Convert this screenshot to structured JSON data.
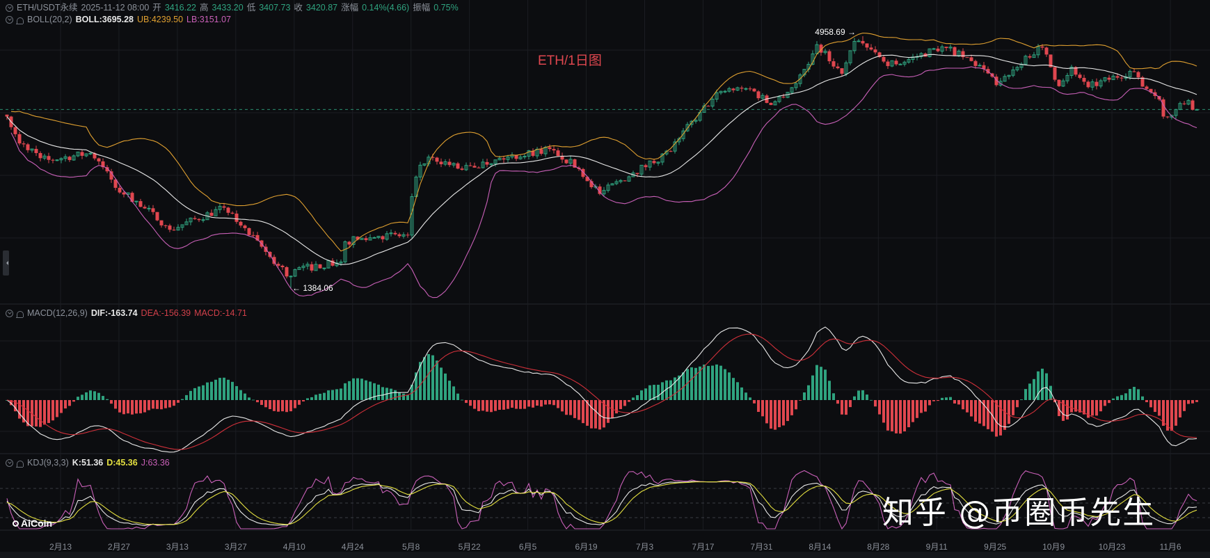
{
  "header": {
    "symbol": "ETH/USDT永续",
    "datetime": "2025-11-12 08:00",
    "open_label": "开",
    "open": "3416.22",
    "high_label": "高",
    "high": "3433.20",
    "low_label": "低",
    "low": "3407.73",
    "close_label": "收",
    "close": "3420.87",
    "change_label": "涨幅",
    "change": "0.14%(4.66)",
    "amplitude_label": "振幅",
    "amplitude": "0.75%"
  },
  "boll": {
    "label": "BOLL(20,2)",
    "mid": "BOLL:3695.28",
    "ub": "UB:4239.50",
    "lb": "LB:3151.07"
  },
  "macd": {
    "label": "MACD(12,26,9)",
    "dif": "DIF:-163.74",
    "dea": "DEA:-156.39",
    "macd": "MACD:-14.71"
  },
  "kdj": {
    "label": "KDJ(9,3,3)",
    "k": "K:51.36",
    "d": "D:45.36",
    "j": "J:63.36"
  },
  "chart_title": "ETH/1日图",
  "watermark": "知乎 @币圈币先生",
  "logo": "AiCoin",
  "annotations": {
    "high": "4958.69",
    "low": "1384.06"
  },
  "colors": {
    "up": "#2fa37f",
    "down": "#e0474f",
    "boll_mid": "#e8e8e8",
    "boll_ub": "#e0a030",
    "boll_lb": "#c960b8",
    "dif": "#e8e8e8",
    "dea": "#d0303a",
    "k": "#e8e8e8",
    "d": "#e4e040",
    "j": "#c960b8",
    "background": "#0c0d10"
  },
  "chart_data": {
    "type": "candlestick",
    "y_scale": "log",
    "year": 2025,
    "x_tick_labels": [
      "2月13",
      "2月27",
      "3月13",
      "3月27",
      "4月10",
      "4月24",
      "5月8",
      "5月22",
      "6月5",
      "6月19",
      "7月3",
      "7月17",
      "7月31",
      "8月14",
      "8月28",
      "9月11",
      "9月25",
      "10月9",
      "10月23",
      "11月6"
    ],
    "approx_close_path": [
      [
        "01-31",
        3300
      ],
      [
        "02-03",
        2880
      ],
      [
        "02-10",
        2650
      ],
      [
        "02-20",
        2740
      ],
      [
        "02-24",
        2500
      ],
      [
        "02-26",
        2300
      ],
      [
        "03-03",
        2150
      ],
      [
        "03-10",
        1900
      ],
      [
        "03-11",
        1860
      ],
      [
        "03-24",
        2080
      ],
      [
        "03-28",
        1900
      ],
      [
        "04-06",
        1550
      ],
      [
        "04-09",
        1470
      ],
      [
        "04-10",
        1520
      ],
      [
        "04-21",
        1580
      ],
      [
        "04-22",
        1750
      ],
      [
        "04-30",
        1800
      ],
      [
        "05-07",
        1810
      ],
      [
        "05-08",
        2200
      ],
      [
        "05-10",
        2580
      ],
      [
        "05-13",
        2680
      ],
      [
        "05-20",
        2520
      ],
      [
        "05-28",
        2650
      ],
      [
        "06-10",
        2800
      ],
      [
        "06-11",
        2780
      ],
      [
        "06-17",
        2530
      ],
      [
        "06-22",
        2230
      ],
      [
        "06-30",
        2480
      ],
      [
        "07-09",
        2770
      ],
      [
        "07-11",
        2950
      ],
      [
        "07-16",
        3370
      ],
      [
        "07-21",
        3750
      ],
      [
        "07-28",
        3800
      ],
      [
        "08-02",
        3500
      ],
      [
        "08-08",
        3900
      ],
      [
        "08-11",
        4300
      ],
      [
        "08-13",
        4750
      ],
      [
        "08-19",
        4100
      ],
      [
        "08-22",
        4830
      ],
      [
        "08-24",
        4780
      ],
      [
        "08-29",
        4360
      ],
      [
        "09-01",
        4300
      ],
      [
        "09-12",
        4700
      ],
      [
        "09-13",
        4670
      ],
      [
        "09-22",
        4200
      ],
      [
        "09-25",
        3870
      ],
      [
        "10-02",
        4480
      ],
      [
        "10-06",
        4680
      ],
      [
        "10-10",
        3850
      ],
      [
        "10-13",
        4240
      ],
      [
        "10-17",
        3830
      ],
      [
        "10-27",
        4150
      ],
      [
        "11-03",
        3600
      ],
      [
        "11-04",
        3300
      ],
      [
        "11-07",
        3420
      ],
      [
        "11-10",
        3580
      ],
      [
        "11-11",
        3416.22
      ]
    ],
    "extremes": {
      "high": {
        "date": "08-24",
        "value": 4958.69
      },
      "low": {
        "date": "04-09",
        "value": 1384.06
      }
    },
    "last_candle": {
      "date": "11-12",
      "open": 3416.22,
      "high": 3433.2,
      "low": 3407.73,
      "close": 3420.87
    },
    "indicators": {
      "boll": {
        "period": 20,
        "k": 2
      },
      "macd": {
        "fast": 12,
        "slow": 26,
        "signal": 9
      },
      "kdj": {
        "n": 9,
        "m1": 3,
        "m2": 3,
        "levels": [
          80,
          50,
          20
        ]
      }
    }
  }
}
